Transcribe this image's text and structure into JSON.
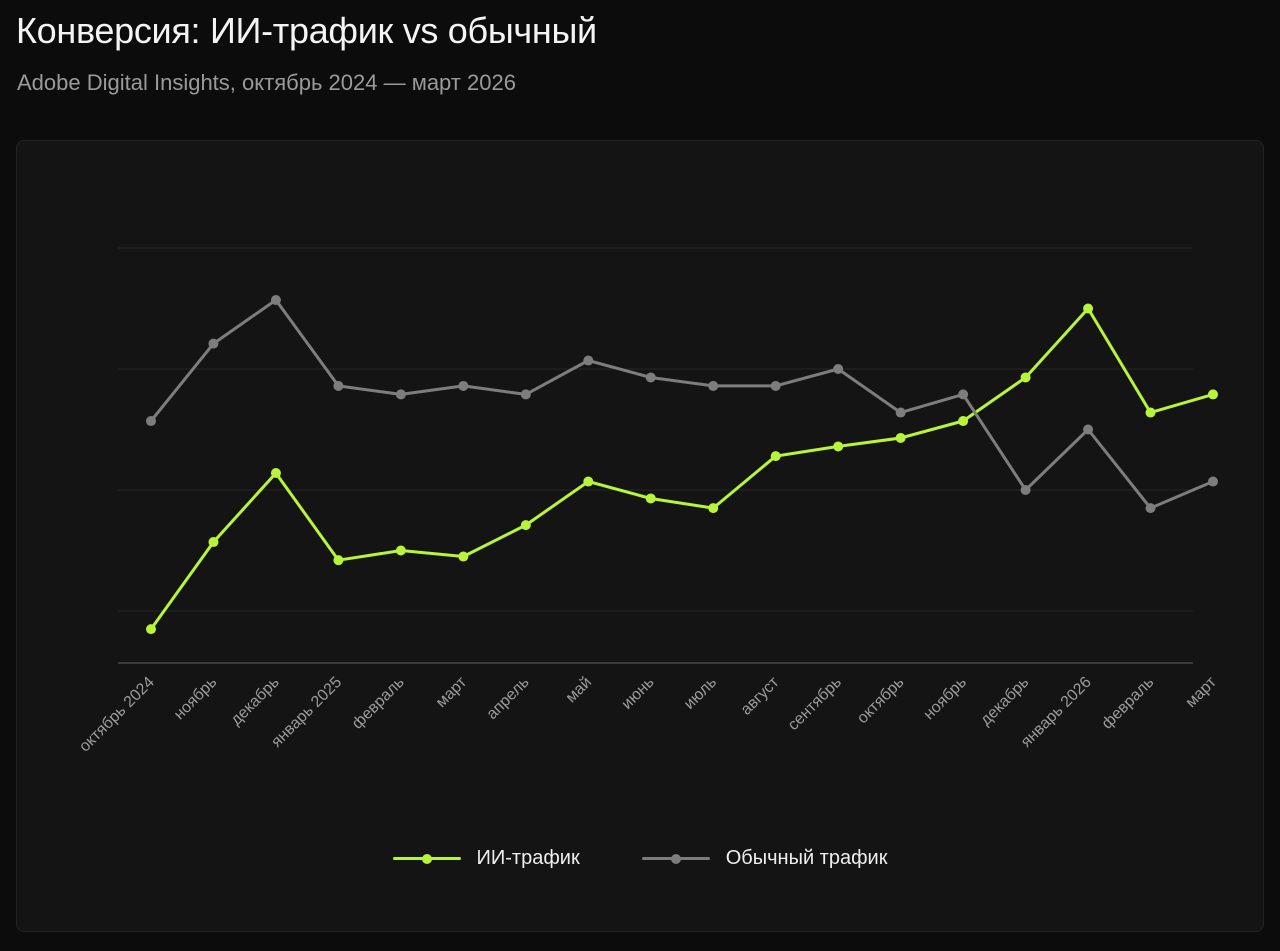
{
  "header": {
    "title": "Конверсия: ИИ-трафик vs обычный",
    "subtitle": "Adobe Digital Insights, октябрь 2024 — март 2026"
  },
  "colors": {
    "ai": "#b8f53a",
    "regular": "#7d7d7d",
    "grid": "#262626",
    "baseline": "#3a3a3a"
  },
  "legend": [
    {
      "key": "ai",
      "label": "ИИ-трафик"
    },
    {
      "key": "regular",
      "label": "Обычный трафик"
    }
  ],
  "chart_data": {
    "type": "line",
    "title": "Конверсия: ИИ-трафик vs обычный",
    "subtitle": "Adobe Digital Insights, октябрь 2024 — март 2026",
    "xlabel": "",
    "ylabel": "",
    "y_axis_labels_visible": false,
    "y_scale_note": "unitless relative scale; gridlines at 1,2,3,4",
    "ylim": [
      0.57,
      4.0
    ],
    "gridlines": [
      1,
      2,
      3,
      4
    ],
    "grid": true,
    "legend_position": "bottom-center",
    "categories": [
      "октябрь 2024",
      "ноябрь",
      "декабрь",
      "январь 2025",
      "февраль",
      "март",
      "апрель",
      "май",
      "июнь",
      "июль",
      "август",
      "сентябрь",
      "октябрь",
      "ноябрь",
      "декабрь",
      "январь 2026",
      "февраль",
      "март"
    ],
    "series": [
      {
        "name": "ИИ-трафик",
        "key": "ai",
        "values": [
          0.85,
          1.57,
          2.14,
          1.42,
          1.5,
          1.45,
          1.71,
          2.07,
          1.93,
          1.85,
          2.28,
          2.36,
          2.43,
          2.57,
          2.93,
          3.5,
          2.64,
          2.79
        ]
      },
      {
        "name": "Обычный трафик",
        "key": "regular",
        "values": [
          2.57,
          3.21,
          3.57,
          2.86,
          2.79,
          2.86,
          2.79,
          3.07,
          2.93,
          2.86,
          2.86,
          3.0,
          2.64,
          2.79,
          2.0,
          2.5,
          1.85,
          2.07
        ]
      }
    ]
  }
}
